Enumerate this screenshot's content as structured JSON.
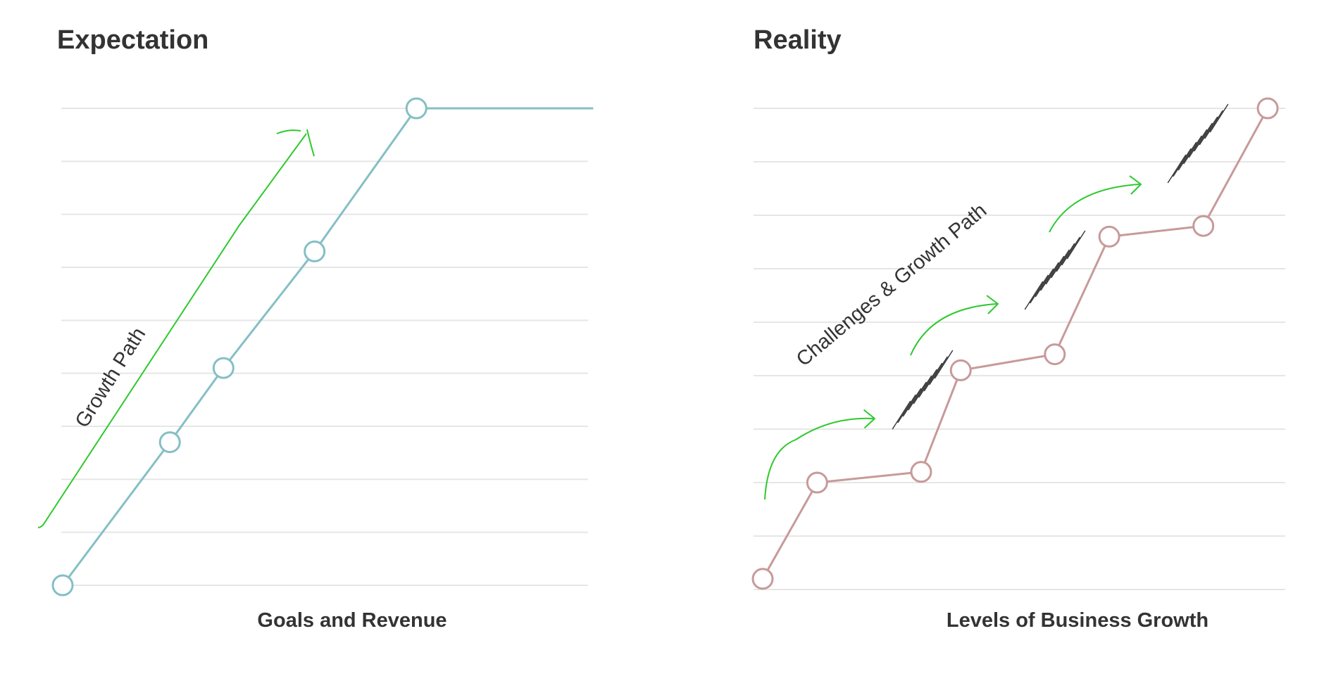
{
  "colors": {
    "grid": "#e6e6e6",
    "expectation_line": "#85bfc5",
    "reality_line": "#c79a9a",
    "growth_arrow": "#2ec92e",
    "hatch": "#333333",
    "text": "#333333"
  },
  "chart_data": [
    {
      "type": "line",
      "title": "Expectation",
      "xlabel": "Goals and Revenue",
      "ylabel": "",
      "grid": true,
      "series": [
        {
          "color": "#85bfc5",
          "points": [
            [
              0,
              0
            ],
            [
              2,
              2.7
            ],
            [
              3,
              4.1
            ],
            [
              4.7,
              6.3
            ],
            [
              6.6,
              9.0
            ]
          ],
          "plateau_to_x": 9.9
        }
      ],
      "annotations": [
        {
          "text": "Growth Path"
        }
      ]
    },
    {
      "type": "line",
      "title": "Reality",
      "xlabel": "Levels of Business Growth",
      "ylabel": "",
      "grid": true,
      "series": [
        {
          "color": "#c79a9a",
          "points": [
            [
              0,
              0.2
            ],
            [
              1.1,
              2.0
            ],
            [
              3.2,
              2.2
            ],
            [
              4.0,
              4.1
            ],
            [
              5.9,
              4.4
            ],
            [
              7.0,
              6.6
            ],
            [
              8.9,
              6.8
            ],
            [
              10.2,
              9.0
            ]
          ]
        }
      ],
      "annotations": [
        {
          "text": "Challenges & Growth Path"
        }
      ]
    }
  ]
}
